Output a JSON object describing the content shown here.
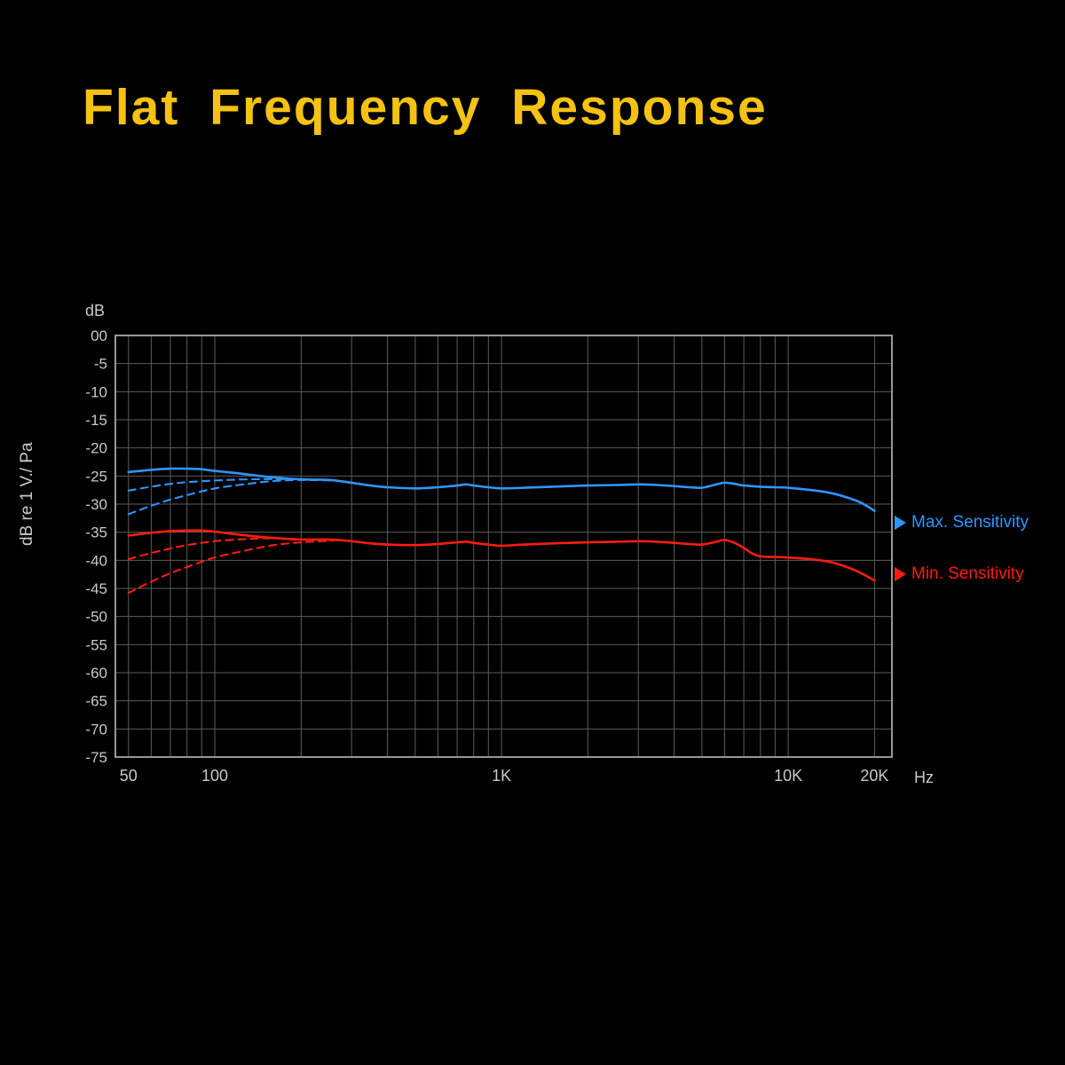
{
  "title": "Flat Frequency Response",
  "colors": {
    "background": "#000000",
    "title": "#f5c211",
    "grid": "#5c5c5c",
    "axis_border": "#989898",
    "tick_text": "#c9c9c9",
    "max_series": "#2e96ff",
    "min_series": "#ff1c0f"
  },
  "legend": [
    {
      "label": "Max. Sensitivity",
      "color": "#2e96ff"
    },
    {
      "label": "Min. Sensitivity",
      "color": "#ff1c0f"
    }
  ],
  "axes": {
    "y": {
      "unit_top": "dB",
      "title": "dB re 1 V./ Pa",
      "tick_labels": [
        "00",
        "-5",
        "-10",
        "-15",
        "-20",
        "-25",
        "-30",
        "-35",
        "-40",
        "-45",
        "-50",
        "-55",
        "-60",
        "-65",
        "-70",
        "-75"
      ],
      "tick_values": [
        0,
        -5,
        -10,
        -15,
        -20,
        -25,
        -30,
        -35,
        -40,
        -45,
        -50,
        -55,
        -60,
        -65,
        -70,
        -75
      ],
      "range": [
        -75,
        0
      ]
    },
    "x": {
      "unit": "Hz",
      "scale": "log",
      "range": [
        45,
        23000
      ],
      "tick_labels": [
        {
          "label": "50",
          "value": 50
        },
        {
          "label": "100",
          "value": 100
        },
        {
          "label": "1K",
          "value": 1000
        },
        {
          "label": "10K",
          "value": 10000
        },
        {
          "label": "20K",
          "value": 20000
        }
      ],
      "gridlines": [
        50,
        60,
        70,
        80,
        90,
        100,
        200,
        300,
        400,
        500,
        600,
        700,
        800,
        900,
        1000,
        2000,
        3000,
        4000,
        5000,
        6000,
        7000,
        8000,
        9000,
        10000,
        20000
      ]
    }
  },
  "chart_data": {
    "type": "line",
    "title": "Flat Frequency Response",
    "xlabel": "Hz",
    "ylabel": "dB re 1 V./ Pa",
    "x_scale": "log",
    "xlim": [
      45,
      23000
    ],
    "ylim": [
      -75,
      0
    ],
    "grid": true,
    "legend_position": "right",
    "series": [
      {
        "name": "Max. Sensitivity",
        "style": "solid",
        "color": "#2e96ff",
        "points": [
          [
            50,
            -24.3
          ],
          [
            60,
            -23.9
          ],
          [
            70,
            -23.7
          ],
          [
            80,
            -23.7
          ],
          [
            90,
            -23.8
          ],
          [
            100,
            -24.1
          ],
          [
            120,
            -24.5
          ],
          [
            150,
            -25.1
          ],
          [
            200,
            -25.6
          ],
          [
            250,
            -25.7
          ],
          [
            300,
            -26.2
          ],
          [
            350,
            -26.7
          ],
          [
            400,
            -27.0
          ],
          [
            500,
            -27.2
          ],
          [
            600,
            -27.0
          ],
          [
            700,
            -26.7
          ],
          [
            750,
            -26.5
          ],
          [
            800,
            -26.7
          ],
          [
            900,
            -27.0
          ],
          [
            1000,
            -27.2
          ],
          [
            1200,
            -27.1
          ],
          [
            1500,
            -26.9
          ],
          [
            2000,
            -26.7
          ],
          [
            2500,
            -26.6
          ],
          [
            3000,
            -26.5
          ],
          [
            3500,
            -26.6
          ],
          [
            4000,
            -26.8
          ],
          [
            4500,
            -27.0
          ],
          [
            5000,
            -27.1
          ],
          [
            5500,
            -26.6
          ],
          [
            6000,
            -26.2
          ],
          [
            6500,
            -26.4
          ],
          [
            7000,
            -26.7
          ],
          [
            8000,
            -26.9
          ],
          [
            9000,
            -27.0
          ],
          [
            10000,
            -27.1
          ],
          [
            12000,
            -27.5
          ],
          [
            14000,
            -28.0
          ],
          [
            16000,
            -28.8
          ],
          [
            18000,
            -29.8
          ],
          [
            20000,
            -31.2
          ]
        ]
      },
      {
        "name": "Max. Sensitivity low-cut 1",
        "style": "dashed",
        "color": "#2e96ff",
        "points": [
          [
            50,
            -27.6
          ],
          [
            60,
            -26.9
          ],
          [
            70,
            -26.4
          ],
          [
            80,
            -26.1
          ],
          [
            100,
            -25.8
          ],
          [
            130,
            -25.6
          ],
          [
            160,
            -25.55
          ],
          [
            210,
            -25.6
          ]
        ]
      },
      {
        "name": "Max. Sensitivity low-cut 2",
        "style": "dashed",
        "color": "#2e96ff",
        "points": [
          [
            50,
            -31.8
          ],
          [
            60,
            -30.3
          ],
          [
            70,
            -29.2
          ],
          [
            80,
            -28.4
          ],
          [
            100,
            -27.2
          ],
          [
            130,
            -26.4
          ],
          [
            160,
            -25.9
          ],
          [
            200,
            -25.7
          ],
          [
            260,
            -25.8
          ]
        ]
      },
      {
        "name": "Min. Sensitivity",
        "style": "solid",
        "color": "#ff1c0f",
        "points": [
          [
            50,
            -35.6
          ],
          [
            60,
            -35.1
          ],
          [
            70,
            -34.8
          ],
          [
            80,
            -34.7
          ],
          [
            90,
            -34.7
          ],
          [
            100,
            -34.9
          ],
          [
            120,
            -35.4
          ],
          [
            150,
            -35.9
          ],
          [
            200,
            -36.3
          ],
          [
            250,
            -36.3
          ],
          [
            300,
            -36.6
          ],
          [
            350,
            -37.0
          ],
          [
            400,
            -37.2
          ],
          [
            500,
            -37.3
          ],
          [
            600,
            -37.1
          ],
          [
            700,
            -36.8
          ],
          [
            750,
            -36.7
          ],
          [
            800,
            -36.9
          ],
          [
            900,
            -37.2
          ],
          [
            1000,
            -37.4
          ],
          [
            1200,
            -37.2
          ],
          [
            1500,
            -37.0
          ],
          [
            2000,
            -36.8
          ],
          [
            2500,
            -36.7
          ],
          [
            3000,
            -36.6
          ],
          [
            3500,
            -36.7
          ],
          [
            4000,
            -36.9
          ],
          [
            4500,
            -37.1
          ],
          [
            5000,
            -37.2
          ],
          [
            5500,
            -36.8
          ],
          [
            6000,
            -36.4
          ],
          [
            6500,
            -36.9
          ],
          [
            7000,
            -37.8
          ],
          [
            7500,
            -38.8
          ],
          [
            8000,
            -39.3
          ],
          [
            9000,
            -39.4
          ],
          [
            10000,
            -39.5
          ],
          [
            12000,
            -39.8
          ],
          [
            14000,
            -40.3
          ],
          [
            16000,
            -41.2
          ],
          [
            18000,
            -42.3
          ],
          [
            20000,
            -43.6
          ]
        ]
      },
      {
        "name": "Min. Sensitivity low-cut 1",
        "style": "dashed",
        "color": "#ff1c0f",
        "points": [
          [
            50,
            -39.8
          ],
          [
            60,
            -38.7
          ],
          [
            70,
            -37.9
          ],
          [
            80,
            -37.3
          ],
          [
            100,
            -36.6
          ],
          [
            130,
            -36.2
          ],
          [
            160,
            -36.1
          ],
          [
            210,
            -36.3
          ]
        ]
      },
      {
        "name": "Min. Sensitivity low-cut 2",
        "style": "dashed",
        "color": "#ff1c0f",
        "points": [
          [
            50,
            -45.8
          ],
          [
            60,
            -43.8
          ],
          [
            70,
            -42.3
          ],
          [
            80,
            -41.2
          ],
          [
            100,
            -39.5
          ],
          [
            130,
            -38.2
          ],
          [
            160,
            -37.3
          ],
          [
            200,
            -36.8
          ],
          [
            260,
            -36.5
          ]
        ]
      }
    ]
  }
}
